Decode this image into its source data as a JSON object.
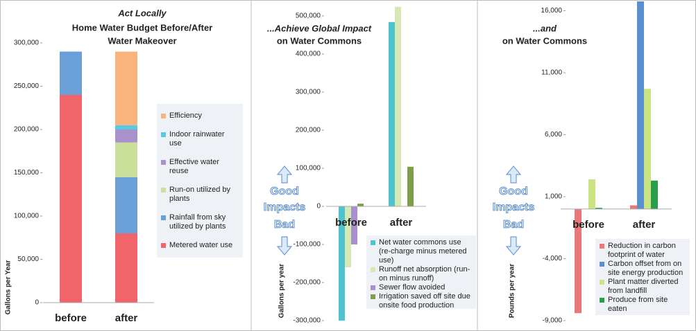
{
  "chart_data": [
    {
      "type": "bar",
      "stacked": true,
      "title": [
        "Act Locally",
        "Home Water Budget Before/After",
        "Water Makeover"
      ],
      "y_label": "Gallons per Year",
      "categories": [
        "before",
        "after"
      ],
      "series": [
        {
          "name": "Metered water use",
          "color": "#f0646a",
          "values": [
            240000,
            80000
          ]
        },
        {
          "name": "Rainfall from sky utilized by plants",
          "color": "#6a9fd8",
          "values": [
            50000,
            65000
          ]
        },
        {
          "name": "Run-on utilized by plants",
          "color": "#c8e09a",
          "values": [
            0,
            40000
          ]
        },
        {
          "name": "Effective water reuse",
          "color": "#a992cc",
          "values": [
            0,
            15000
          ]
        },
        {
          "name": "Indoor rainwater use",
          "color": "#5cc8e2",
          "values": [
            0,
            5000
          ]
        },
        {
          "name": "Efficiency",
          "color": "#f9b47c",
          "values": [
            0,
            85000
          ]
        }
      ],
      "ylim": [
        0,
        300000
      ],
      "yticks": [
        0,
        {
          "value": 50000,
          "label": "50,000"
        },
        {
          "value": 100000,
          "label": "100,000"
        },
        {
          "value": 150000,
          "label": "150,000"
        },
        {
          "value": 200000,
          "label": "200,000"
        },
        {
          "value": 250000,
          "label": "250,000"
        },
        {
          "value": 300000,
          "label": "300,000"
        }
      ]
    },
    {
      "type": "bar",
      "stacked": false,
      "title": [
        "...Achieve Global Impact",
        "on Water Commons"
      ],
      "y_label": "Gallons per year",
      "annotations": [
        "Good",
        "Impacts",
        "Bad"
      ],
      "categories": [
        "before",
        "after"
      ],
      "series": [
        {
          "name": "Net water commons use (re-charge minus metered use)",
          "color": "#4fc3cf",
          "values": [
            -300000,
            484000
          ]
        },
        {
          "name": "Runoff net absorption (run-on minus runoff)",
          "color": "#d6e8b4",
          "values": [
            -160000,
            524000
          ]
        },
        {
          "name": "Sewer flow avoided",
          "color": "#a98fce",
          "values": [
            -100000,
            0
          ]
        },
        {
          "name": "Irrigation saved off site due onsite food production",
          "color": "#7f9e4a",
          "values": [
            7000,
            104000
          ]
        }
      ],
      "ylim": [
        -300000,
        530000
      ],
      "yticks": [
        {
          "value": -300000,
          "label": "-300,000"
        },
        {
          "value": -200000,
          "label": "-200,000"
        },
        {
          "value": -100000,
          "label": "-100,000"
        },
        0,
        {
          "value": 100000,
          "label": "100,000"
        },
        {
          "value": 200000,
          "label": "200,000"
        },
        {
          "value": 300000,
          "label": "300,000"
        },
        {
          "value": 400000,
          "label": "400,000"
        },
        {
          "value": 500000,
          "label": "500,000"
        }
      ]
    },
    {
      "type": "bar",
      "stacked": false,
      "title": [
        "...and",
        "on Water Commons"
      ],
      "y_label": "Pounds per year",
      "annotations": [
        "Good",
        "Impacts",
        "Bad"
      ],
      "categories": [
        "before",
        "after"
      ],
      "series": [
        {
          "name": "Reduction in carbon footprint of water",
          "color": "#e8787a",
          "values": [
            -8400,
            300
          ]
        },
        {
          "name": "Carbon offset from on site energy production",
          "color": "#5a8fd0",
          "values": [
            0,
            17000
          ]
        },
        {
          "name": "Plant matter diverted from landfill",
          "color": "#cbe483",
          "values": [
            2400,
            9700
          ]
        },
        {
          "name": "Produce from site eaten",
          "color": "#2a9d4a",
          "values": [
            100,
            2300
          ]
        }
      ],
      "ylim": [
        -9000,
        16600
      ],
      "yticks": [
        {
          "value": -9000,
          "label": "-9,000"
        },
        {
          "value": -4000,
          "label": "-4,000"
        },
        {
          "value": 1000,
          "label": "1,000"
        },
        {
          "value": 6000,
          "label": "6,000"
        },
        {
          "value": 11000,
          "label": "11,000"
        },
        {
          "value": 16000,
          "label": "16,000"
        }
      ]
    }
  ]
}
